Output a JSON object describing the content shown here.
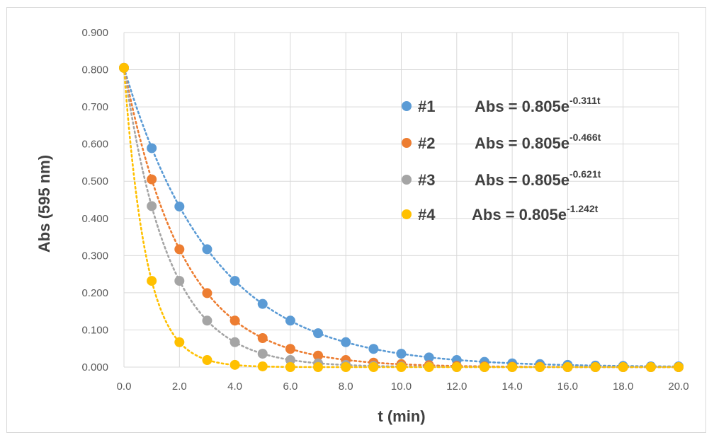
{
  "chart_data": {
    "type": "scatter",
    "xlabel": "t (min)",
    "ylabel": "Abs (595 nm)",
    "xlim": [
      0,
      20
    ],
    "ylim": [
      0,
      0.9
    ],
    "x_ticks": [
      "0.0",
      "2.0",
      "4.0",
      "6.0",
      "8.0",
      "10.0",
      "12.0",
      "14.0",
      "16.0",
      "18.0",
      "20.0"
    ],
    "y_ticks": [
      "0.000",
      "0.100",
      "0.200",
      "0.300",
      "0.400",
      "0.500",
      "0.600",
      "0.700",
      "0.800",
      "0.900"
    ],
    "grid": true,
    "legend_position": "right",
    "x": [
      0,
      1,
      2,
      3,
      4,
      5,
      6,
      7,
      8,
      9,
      10,
      11,
      12,
      13,
      14,
      15,
      16,
      17,
      18,
      19,
      20
    ],
    "series": [
      {
        "name": "#1",
        "color": "#5b9bd5",
        "fit_label": "Abs = 0.805e",
        "fit_exponent": "-0.311t",
        "fit_amplitude": 0.805,
        "fit_rate": 0.311,
        "values": [
          0.805,
          0.589,
          0.432,
          0.317,
          0.232,
          0.17,
          0.125,
          0.091,
          0.067,
          0.049,
          0.036,
          0.026,
          0.019,
          0.014,
          0.01,
          0.008,
          0.006,
          0.004,
          0.003,
          0.002,
          0.002
        ]
      },
      {
        "name": "#2",
        "color": "#ed7d31",
        "fit_label": "Abs = 0.805e",
        "fit_exponent": "-0.466t",
        "fit_amplitude": 0.805,
        "fit_rate": 0.466,
        "values": [
          0.805,
          0.505,
          0.317,
          0.199,
          0.125,
          0.078,
          0.049,
          0.031,
          0.019,
          0.012,
          0.008,
          0.005,
          0.003,
          0.002,
          0.001,
          0.001,
          0.0,
          0.0,
          0.0,
          0.0,
          0.0
        ]
      },
      {
        "name": "#3",
        "color": "#a5a5a5",
        "fit_label": "Abs = 0.805e",
        "fit_exponent": "-0.621t",
        "fit_amplitude": 0.805,
        "fit_rate": 0.621,
        "values": [
          0.805,
          0.433,
          0.232,
          0.125,
          0.067,
          0.036,
          0.019,
          0.01,
          0.006,
          0.003,
          0.002,
          0.001,
          0.0,
          0.0,
          0.0,
          0.0,
          0.0,
          0.0,
          0.0,
          0.0,
          0.0
        ]
      },
      {
        "name": "#4",
        "color": "#ffc000",
        "fit_label": "Abs = 0.805e",
        "fit_exponent": "-1.242t",
        "fit_amplitude": 0.805,
        "fit_rate": 1.242,
        "values": [
          0.805,
          0.232,
          0.067,
          0.019,
          0.006,
          0.002,
          0.0,
          0.0,
          0.0,
          0.0,
          0.0,
          0.0,
          0.0,
          0.0,
          0.0,
          0.0,
          0.0,
          0.0,
          0.0,
          0.0,
          0.0
        ]
      }
    ]
  }
}
